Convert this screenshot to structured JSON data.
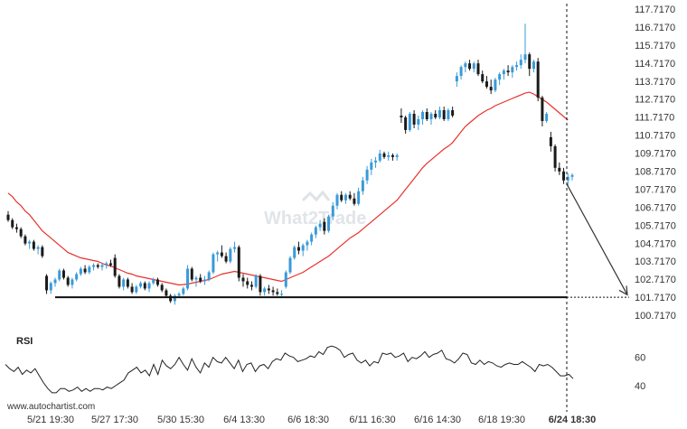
{
  "chart_data": {
    "type": "candlestick",
    "y_axis": {
      "ticks": [
        "117.7170",
        "116.7170",
        "115.7170",
        "114.7170",
        "113.7170",
        "112.7170",
        "111.7170",
        "110.7170",
        "109.7170",
        "108.7170",
        "107.7170",
        "106.7170",
        "105.7170",
        "104.7170",
        "103.7170",
        "102.7170",
        "101.7170",
        "100.7170"
      ],
      "range": [
        100.217,
        117.917
      ]
    },
    "x_axis": {
      "labels": [
        "5/21 19:30",
        "5/27 17:30",
        "5/30 15:30",
        "6/4 13:30",
        "6/6 18:30",
        "6/11 16:30",
        "6/16 14:30",
        "6/18 19:30",
        "6/24 18:30"
      ],
      "highlight_label": "6/24 18:30"
    },
    "support_level": 101.717,
    "target_level": 101.717,
    "projection": {
      "from": 108.0,
      "to": 101.85
    },
    "ohlc": [
      [
        106.3,
        106.5,
        105.9,
        106.0
      ],
      [
        106.0,
        106.1,
        105.5,
        105.6
      ],
      [
        105.6,
        105.8,
        105.3,
        105.5
      ],
      [
        105.5,
        105.6,
        105.0,
        105.1
      ],
      [
        105.1,
        105.2,
        104.6,
        104.7
      ],
      [
        104.7,
        104.9,
        104.4,
        104.8
      ],
      [
        104.8,
        104.9,
        104.3,
        104.4
      ],
      [
        104.4,
        104.6,
        104.1,
        104.5
      ],
      [
        104.5,
        104.6,
        103.9,
        104.0
      ],
      [
        102.9,
        103.0,
        101.9,
        102.1
      ],
      [
        102.1,
        102.6,
        101.9,
        102.5
      ],
      [
        102.5,
        102.8,
        102.3,
        102.7
      ],
      [
        102.7,
        103.3,
        102.6,
        103.2
      ],
      [
        103.2,
        103.3,
        102.7,
        102.8
      ],
      [
        102.8,
        102.9,
        102.3,
        102.4
      ],
      [
        102.4,
        102.8,
        102.2,
        102.7
      ],
      [
        102.7,
        103.1,
        102.6,
        103.0
      ],
      [
        103.0,
        103.4,
        102.9,
        103.3
      ],
      [
        103.3,
        103.5,
        103.0,
        103.1
      ],
      [
        103.1,
        103.5,
        103.0,
        103.4
      ],
      [
        103.4,
        103.6,
        103.2,
        103.5
      ],
      [
        103.5,
        103.6,
        103.3,
        103.4
      ],
      [
        103.4,
        103.6,
        103.2,
        103.5
      ],
      [
        103.5,
        103.7,
        103.3,
        103.6
      ],
      [
        103.6,
        103.8,
        103.4,
        103.5
      ],
      [
        103.9,
        104.1,
        102.8,
        102.9
      ],
      [
        102.9,
        103.0,
        102.2,
        102.3
      ],
      [
        102.3,
        102.8,
        102.1,
        102.7
      ],
      [
        102.7,
        102.8,
        102.2,
        102.3
      ],
      [
        102.3,
        102.5,
        101.9,
        102.0
      ],
      [
        102.0,
        102.4,
        101.9,
        102.3
      ],
      [
        102.3,
        102.6,
        102.2,
        102.5
      ],
      [
        102.5,
        102.6,
        102.1,
        102.2
      ],
      [
        102.2,
        102.6,
        102.0,
        102.5
      ],
      [
        102.5,
        102.8,
        102.4,
        102.7
      ],
      [
        102.7,
        102.8,
        102.3,
        102.4
      ],
      [
        102.4,
        102.5,
        102.0,
        102.1
      ],
      [
        102.1,
        102.2,
        101.7,
        101.8
      ],
      [
        101.8,
        101.9,
        101.4,
        101.5
      ],
      [
        101.5,
        101.9,
        101.3,
        101.8
      ],
      [
        101.8,
        102.0,
        101.7,
        101.9
      ],
      [
        101.9,
        102.3,
        101.8,
        102.2
      ],
      [
        102.2,
        103.5,
        102.1,
        103.3
      ],
      [
        103.3,
        103.4,
        102.6,
        102.7
      ],
      [
        102.7,
        102.9,
        102.3,
        102.8
      ],
      [
        102.8,
        103.0,
        102.5,
        102.6
      ],
      [
        102.6,
        102.9,
        102.4,
        102.7
      ],
      [
        102.7,
        103.2,
        102.6,
        103.1
      ],
      [
        103.1,
        104.2,
        103.0,
        104.1
      ],
      [
        104.1,
        104.3,
        103.7,
        104.2
      ],
      [
        104.2,
        104.6,
        103.9,
        104.0
      ],
      [
        104.0,
        104.2,
        103.6,
        103.7
      ],
      [
        103.7,
        104.5,
        103.6,
        104.4
      ],
      [
        104.4,
        104.8,
        104.2,
        104.5
      ],
      [
        104.5,
        104.6,
        102.6,
        102.8
      ],
      [
        102.8,
        103.0,
        102.3,
        102.6
      ],
      [
        102.6,
        102.8,
        102.2,
        102.4
      ],
      [
        102.4,
        102.6,
        102.1,
        102.3
      ],
      [
        102.3,
        103.0,
        102.2,
        102.9
      ],
      [
        102.9,
        103.0,
        101.8,
        102.0
      ],
      [
        102.0,
        102.3,
        101.8,
        102.2
      ],
      [
        102.2,
        102.4,
        101.9,
        102.1
      ],
      [
        102.1,
        102.3,
        101.8,
        102.0
      ],
      [
        102.0,
        102.2,
        101.8,
        101.9
      ],
      [
        101.9,
        102.1,
        101.7,
        101.9
      ],
      [
        102.3,
        103.2,
        102.2,
        103.1
      ],
      [
        103.1,
        104.0,
        103.0,
        103.9
      ],
      [
        103.9,
        104.6,
        103.8,
        104.5
      ],
      [
        104.5,
        104.8,
        104.1,
        104.3
      ],
      [
        104.3,
        104.7,
        104.0,
        104.6
      ],
      [
        104.6,
        104.9,
        104.3,
        104.8
      ],
      [
        104.8,
        105.3,
        104.6,
        105.2
      ],
      [
        105.2,
        105.7,
        105.0,
        105.6
      ],
      [
        105.6,
        106.0,
        105.4,
        105.8
      ],
      [
        105.9,
        106.1,
        105.2,
        105.4
      ],
      [
        105.4,
        106.3,
        105.3,
        106.2
      ],
      [
        106.2,
        107.0,
        106.0,
        106.8
      ],
      [
        106.8,
        107.5,
        106.6,
        107.4
      ],
      [
        107.4,
        107.6,
        107.0,
        107.1
      ],
      [
        107.1,
        107.5,
        106.9,
        107.4
      ],
      [
        107.4,
        107.6,
        107.1,
        107.2
      ],
      [
        107.2,
        107.5,
        106.8,
        106.9
      ],
      [
        106.9,
        107.8,
        106.8,
        107.6
      ],
      [
        107.6,
        108.4,
        107.4,
        108.2
      ],
      [
        108.2,
        109.0,
        108.0,
        108.8
      ],
      [
        108.8,
        109.4,
        108.5,
        109.2
      ],
      [
        109.2,
        109.5,
        108.9,
        109.3
      ],
      [
        109.3,
        109.9,
        109.2,
        109.7
      ],
      [
        109.7,
        109.8,
        109.4,
        109.5
      ],
      [
        109.5,
        109.8,
        109.3,
        109.6
      ],
      [
        109.6,
        109.7,
        109.3,
        109.5
      ],
      [
        109.5,
        109.7,
        109.3,
        109.6
      ],
      [
        111.8,
        112.2,
        111.4,
        111.7
      ],
      [
        111.7,
        111.8,
        110.8,
        111.0
      ],
      [
        111.0,
        112.0,
        110.9,
        111.9
      ],
      [
        111.9,
        112.1,
        111.1,
        111.3
      ],
      [
        111.3,
        111.8,
        111.0,
        111.6
      ],
      [
        111.6,
        112.1,
        111.3,
        112.0
      ],
      [
        112.0,
        112.2,
        111.5,
        111.6
      ],
      [
        111.6,
        112.0,
        111.3,
        111.9
      ],
      [
        111.9,
        112.1,
        111.6,
        111.7
      ],
      [
        111.7,
        112.3,
        111.6,
        112.1
      ],
      [
        112.1,
        112.3,
        111.5,
        111.6
      ],
      [
        111.6,
        112.2,
        111.5,
        112.1
      ],
      [
        112.1,
        112.3,
        111.7,
        111.8
      ],
      [
        113.7,
        114.2,
        113.4,
        114.0
      ],
      [
        114.0,
        114.6,
        113.8,
        114.5
      ],
      [
        114.5,
        114.8,
        114.2,
        114.7
      ],
      [
        114.7,
        114.9,
        114.3,
        114.4
      ],
      [
        114.4,
        114.8,
        114.2,
        114.7
      ],
      [
        114.7,
        114.9,
        114.0,
        114.1
      ],
      [
        114.1,
        114.3,
        113.6,
        113.7
      ],
      [
        113.7,
        114.0,
        113.3,
        113.4
      ],
      [
        113.4,
        113.8,
        113.0,
        113.2
      ],
      [
        113.2,
        113.9,
        113.1,
        113.8
      ],
      [
        113.8,
        114.2,
        113.5,
        114.1
      ],
      [
        114.1,
        114.4,
        113.8,
        114.3
      ],
      [
        114.3,
        114.6,
        114.0,
        114.2
      ],
      [
        114.2,
        114.6,
        113.9,
        114.5
      ],
      [
        114.5,
        114.8,
        114.3,
        114.6
      ],
      [
        114.6,
        115.2,
        114.4,
        114.9
      ],
      [
        114.9,
        116.9,
        114.7,
        115.2
      ],
      [
        115.2,
        115.3,
        114.0,
        114.4
      ],
      [
        114.4,
        114.9,
        114.2,
        114.8
      ],
      [
        114.8,
        115.0,
        112.6,
        112.8
      ],
      [
        112.8,
        112.9,
        111.2,
        111.5
      ],
      [
        111.5,
        112.0,
        111.4,
        111.9
      ],
      [
        110.6,
        110.9,
        109.8,
        110.1
      ],
      [
        110.1,
        110.2,
        108.7,
        108.9
      ],
      [
        108.9,
        109.2,
        108.5,
        108.7
      ],
      [
        108.7,
        108.9,
        108.0,
        108.2
      ],
      [
        108.2,
        108.6,
        107.9,
        108.4
      ],
      [
        108.4,
        108.6,
        108.2,
        108.5
      ]
    ],
    "ma": [
      107.5,
      107.3,
      107.0,
      106.8,
      106.5,
      106.3,
      106.0,
      105.7,
      105.4,
      105.2,
      105.0,
      104.8,
      104.6,
      104.4,
      104.2,
      104.1,
      104.0,
      103.9,
      103.85,
      103.8,
      103.75,
      103.7,
      103.6,
      103.5,
      103.45,
      103.35,
      103.25,
      103.15,
      103.05,
      103.0,
      102.9,
      102.85,
      102.8,
      102.75,
      102.7,
      102.65,
      102.6,
      102.55,
      102.5,
      102.45,
      102.4,
      102.42,
      102.45,
      102.5,
      102.55,
      102.6,
      102.65,
      102.7,
      102.8,
      102.9,
      103.0,
      103.05,
      103.1,
      103.15,
      103.1,
      103.05,
      103.0,
      102.95,
      102.9,
      102.85,
      102.8,
      102.75,
      102.7,
      102.65,
      102.6,
      102.7,
      102.8,
      102.9,
      103.0,
      103.1,
      103.25,
      103.4,
      103.55,
      103.7,
      103.85,
      104.0,
      104.2,
      104.4,
      104.6,
      104.8,
      105.0,
      105.15,
      105.3,
      105.5,
      105.7,
      105.9,
      106.1,
      106.3,
      106.5,
      106.7,
      106.9,
      107.1,
      107.4,
      107.7,
      108.0,
      108.3,
      108.6,
      108.9,
      109.15,
      109.35,
      109.55,
      109.75,
      109.95,
      110.1,
      110.3,
      110.6,
      110.9,
      111.2,
      111.4,
      111.6,
      111.8,
      111.95,
      112.1,
      112.2,
      112.35,
      112.45,
      112.55,
      112.65,
      112.75,
      112.85,
      112.95,
      113.05,
      113.1,
      113.0,
      112.85,
      112.7,
      112.55,
      112.35,
      112.15,
      111.95,
      111.75,
      111.55
    ],
    "rsi": {
      "title": "RSI",
      "ticks": [
        "60",
        "40"
      ],
      "range": [
        33,
        70
      ],
      "values": [
        55,
        52,
        50,
        53,
        48,
        51,
        49,
        52,
        47,
        42,
        38,
        35,
        35,
        38,
        38,
        36,
        37,
        39,
        36,
        38,
        36,
        38,
        38,
        37,
        39,
        38,
        40,
        42,
        44,
        49,
        51,
        53,
        49,
        51,
        47,
        55,
        48,
        58,
        54,
        52,
        55,
        60,
        55,
        51,
        59,
        53,
        49,
        56,
        53,
        60,
        57,
        56,
        60,
        56,
        52,
        58,
        50,
        55,
        56,
        50,
        54,
        55,
        52,
        57,
        59,
        58,
        63,
        61,
        60,
        57,
        58,
        59,
        61,
        60,
        64,
        62,
        67,
        68,
        67,
        65,
        60,
        62,
        63,
        58,
        56,
        58,
        54,
        57,
        56,
        63,
        62,
        63,
        60,
        61,
        63,
        57,
        60,
        59,
        61,
        64,
        60,
        62,
        63,
        65,
        59,
        58,
        56,
        59,
        63,
        62,
        56,
        55,
        58,
        55,
        57,
        56,
        54,
        53,
        55,
        56,
        55,
        55,
        57,
        55,
        53,
        50,
        55,
        54,
        55,
        53,
        50,
        47,
        47,
        48,
        45
      ]
    },
    "watermark": "What2Trade",
    "footer_url": "www.autochartist.com"
  }
}
